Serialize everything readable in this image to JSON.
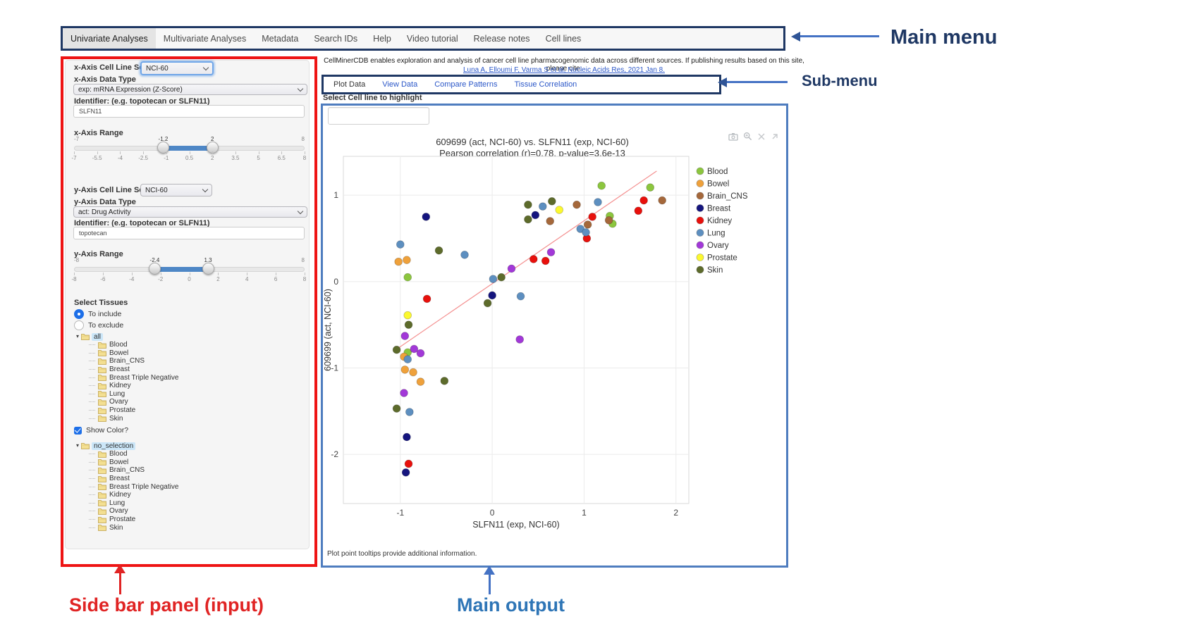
{
  "main_menu": {
    "items": [
      {
        "label": "Univariate Analyses",
        "active": true
      },
      {
        "label": "Multivariate Analyses",
        "active": false
      },
      {
        "label": "Metadata",
        "active": false
      },
      {
        "label": "Search IDs",
        "active": false
      },
      {
        "label": "Help",
        "active": false
      },
      {
        "label": "Video tutorial",
        "active": false
      },
      {
        "label": "Release notes",
        "active": false
      },
      {
        "label": "Cell lines",
        "active": false
      }
    ]
  },
  "annotations": {
    "main_menu_label": "Main menu",
    "sub_menu_label": "Sub-menu",
    "sidebar_label": "Side bar panel (input)",
    "main_output_label": "Main output"
  },
  "citation": {
    "text": "CellMinerCDB enables exploration and analysis of cancer cell line pharmacogenomic data across different sources. If publishing results based on this site, please cite:",
    "link": "Luna A, Elloumi F, Varma S et al, Nucleic Acids Res, 2021 Jan 8."
  },
  "submenu": {
    "tabs": [
      {
        "label": "Plot Data",
        "active": true
      },
      {
        "label": "View Data",
        "active": false
      },
      {
        "label": "Compare Patterns",
        "active": false
      },
      {
        "label": "Tissue Correlation",
        "active": false
      }
    ]
  },
  "sidebar": {
    "x_axis": {
      "cell_line_set_label": "x-Axis Cell Line Set",
      "cell_line_set_value": "NCI-60",
      "data_type_label": "x-Axis Data Type",
      "data_type_value": "exp: mRNA Expression (Z-Score)",
      "identifier_label": "Identifier: (e.g. topotecan or SLFN11)",
      "identifier_value": "SLFN11",
      "range_label": "x-Axis Range",
      "range": {
        "min": -7,
        "max": 8,
        "from": -1.2,
        "to": 2,
        "min_label": "-7",
        "max_label": "8",
        "from_label": "-1.2",
        "to_label": "2",
        "ticks": [
          "-7",
          "-5.5",
          "-4",
          "-2.5",
          "-1",
          "0.5",
          "2",
          "3.5",
          "5",
          "6.5",
          "8"
        ]
      }
    },
    "y_axis": {
      "cell_line_set_label": "y-Axis Cell Line Set",
      "cell_line_set_value": "NCI-60",
      "data_type_label": "y-Axis Data Type",
      "data_type_value": "act: Drug Activity",
      "identifier_label": "Identifier: (e.g. topotecan or SLFN11)",
      "identifier_value": "topotecan",
      "range_label": "y-Axis Range",
      "range": {
        "min": -8,
        "max": 8,
        "from": -2.4,
        "to": 1.3,
        "min_label": "-8",
        "max_label": "8",
        "from_label": "-2.4",
        "to_label": "1.3",
        "ticks": [
          "-8",
          "-6",
          "-4",
          "-2",
          "0",
          "2",
          "4",
          "6",
          "8"
        ]
      }
    },
    "select_tissues_label": "Select Tissues",
    "radio_include_label": "To include",
    "radio_exclude_label": "To exclude",
    "include_selected": true,
    "tissue_tree": {
      "root": "all",
      "children": [
        "Blood",
        "Bowel",
        "Brain_CNS",
        "Breast",
        "Breast Triple Negative",
        "Kidney",
        "Lung",
        "Ovary",
        "Prostate",
        "Skin"
      ]
    },
    "show_color_label": "Show Color?",
    "show_color_checked": true,
    "color_tree": {
      "root": "no_selection",
      "children": [
        "Blood",
        "Bowel",
        "Brain_CNS",
        "Breast",
        "Breast Triple Negative",
        "Kidney",
        "Lung",
        "Ovary",
        "Prostate",
        "Skin"
      ]
    }
  },
  "main_output": {
    "highlight_label": "Select Cell line to highlight",
    "highlight_value": "",
    "footnote": "Plot point tooltips provide additional information.",
    "modebar_icons": [
      "camera-icon",
      "zoom-icon",
      "close-icon",
      "resize-arrow-icon"
    ]
  },
  "chart_data": {
    "type": "scatter",
    "title": "609699 (act, NCI-60) vs. SLFN11 (exp, NCI-60)",
    "subtitle": "Pearson correlation (r)=0.78, p-value=3.6e-13",
    "xlabel": "SLFN11 (exp, NCI-60)",
    "ylabel": "609699 (act, NCI-60)",
    "xlim": [
      -1.62,
      2.14
    ],
    "ylim": [
      -2.57,
      1.45
    ],
    "xticks": [
      -1,
      0,
      1,
      2
    ],
    "yticks": [
      -2,
      -1,
      0,
      1
    ],
    "grid": true,
    "legend_position": "right",
    "regression_line": {
      "x1": -1.05,
      "y1": -0.79,
      "x2": 1.79,
      "y2": 1.28,
      "color": "#f49090"
    },
    "series": [
      {
        "name": "Blood",
        "color": "#8cc63e",
        "points": [
          [
            -0.92,
            0.05
          ],
          [
            -0.92,
            -0.82
          ],
          [
            1.19,
            1.11
          ],
          [
            1.28,
            0.76
          ],
          [
            1.31,
            0.67
          ],
          [
            1.72,
            1.09
          ]
        ]
      },
      {
        "name": "Bowel",
        "color": "#efa13b",
        "points": [
          [
            -1.02,
            0.23
          ],
          [
            -0.93,
            0.25
          ],
          [
            -0.96,
            -0.87
          ],
          [
            -0.95,
            -1.02
          ],
          [
            -0.86,
            -1.05
          ],
          [
            -0.78,
            -1.16
          ]
        ]
      },
      {
        "name": "Brain_CNS",
        "color": "#a5683b",
        "points": [
          [
            0.63,
            0.7
          ],
          [
            0.92,
            0.89
          ],
          [
            1.04,
            0.66
          ],
          [
            1.27,
            0.71
          ],
          [
            1.85,
            0.94
          ]
        ]
      },
      {
        "name": "Breast",
        "color": "#15157e",
        "points": [
          [
            -0.72,
            0.75
          ],
          [
            0.0,
            -0.16
          ],
          [
            0.47,
            0.77
          ],
          [
            -0.93,
            -1.8
          ],
          [
            -0.94,
            -2.21
          ]
        ]
      },
      {
        "name": "Kidney",
        "color": "#e8100c",
        "points": [
          [
            -0.71,
            -0.2
          ],
          [
            0.45,
            0.26
          ],
          [
            0.58,
            0.24
          ],
          [
            1.03,
            0.5
          ],
          [
            1.09,
            0.75
          ],
          [
            1.59,
            0.82
          ],
          [
            1.65,
            0.94
          ],
          [
            -0.91,
            -2.11
          ]
        ]
      },
      {
        "name": "Lung",
        "color": "#5d8fc0",
        "points": [
          [
            -1.0,
            0.43
          ],
          [
            -0.3,
            0.31
          ],
          [
            0.01,
            0.03
          ],
          [
            0.31,
            -0.17
          ],
          [
            0.55,
            0.87
          ],
          [
            0.96,
            0.61
          ],
          [
            1.02,
            0.57
          ],
          [
            1.15,
            0.92
          ],
          [
            -0.92,
            -0.9
          ],
          [
            -0.9,
            -1.51
          ]
        ]
      },
      {
        "name": "Ovary",
        "color": "#a238d8",
        "points": [
          [
            0.21,
            0.15
          ],
          [
            0.64,
            0.34
          ],
          [
            0.3,
            -0.67
          ],
          [
            -0.95,
            -0.63
          ],
          [
            -0.85,
            -0.78
          ],
          [
            -0.78,
            -0.83
          ],
          [
            -0.96,
            -1.29
          ]
        ]
      },
      {
        "name": "Prostate",
        "color": "#fbf82f",
        "points": [
          [
            0.73,
            0.83
          ],
          [
            -0.92,
            -0.39
          ]
        ]
      },
      {
        "name": "Skin",
        "color": "#5d6b2b",
        "points": [
          [
            -0.58,
            0.36
          ],
          [
            0.1,
            0.05
          ],
          [
            -0.05,
            -0.25
          ],
          [
            0.39,
            0.89
          ],
          [
            0.39,
            0.72
          ],
          [
            0.65,
            0.93
          ],
          [
            -0.91,
            -0.5
          ],
          [
            -1.04,
            -0.79
          ],
          [
            -0.52,
            -1.15
          ],
          [
            -1.04,
            -1.47
          ]
        ]
      }
    ]
  }
}
